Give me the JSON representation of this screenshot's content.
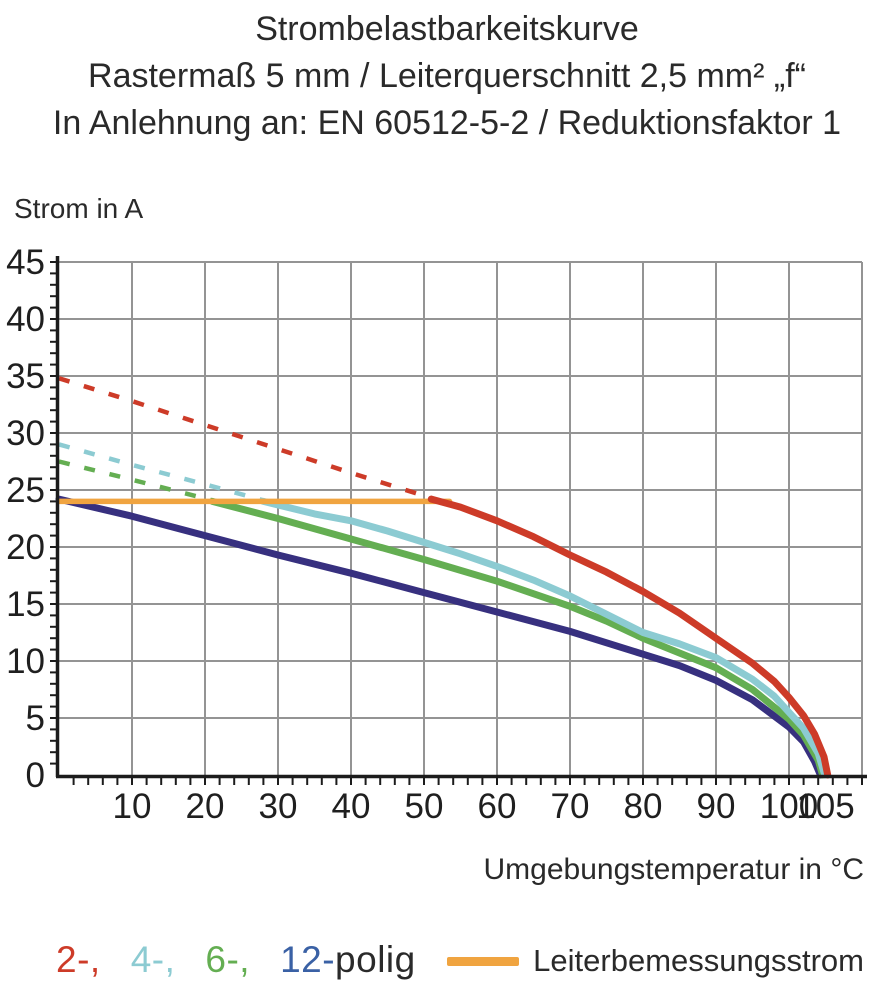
{
  "title": {
    "line1": "Strombelastbarkeitskurve",
    "line2": "Rastermaß 5 mm / Leiterquerschnitt 2,5 mm² „f“",
    "line3": "In Anlehnung an: EN 60512-5-2 / Reduktionsfaktor 1"
  },
  "axis_titles": {
    "y": "Strom in A",
    "x": "Umgebungstemperatur in °C"
  },
  "legend": {
    "poles": [
      {
        "label": "2-,",
        "color": "#cd3b28"
      },
      {
        "label": "4-,",
        "color": "#8ccbd2"
      },
      {
        "label": "6-,",
        "color": "#64ae52"
      },
      {
        "label": "12-polig",
        "color": "#3a61a5",
        "suffix": "polig",
        "number": "12-",
        "suffix_color": "#2a2a2a"
      }
    ],
    "rated": {
      "label": "Leiterbemessungsstrom",
      "swatch_color": "#f0a440"
    }
  },
  "colors": {
    "grid": "#949494",
    "axis": "#1c1c1c",
    "tick_text": "#1f1f1f",
    "red": "#cd3b28",
    "cyan": "#8ccbd2",
    "green": "#64ae52",
    "navy": "#37307f",
    "orange": "#f0a440"
  },
  "chart_data": {
    "type": "line",
    "title": "Strombelastbarkeitskurve",
    "subtitle": "Rastermaß 5 mm / Leiterquerschnitt 2,5 mm² „f“ / In Anlehnung an: EN 60512-5-2 / Reduktionsfaktor 1",
    "xlabel": "Umgebungstemperatur in °C",
    "ylabel": "Strom in A",
    "xlim": [
      0,
      110
    ],
    "ylim": [
      0,
      45
    ],
    "grid": true,
    "legend_position": "bottom",
    "x_grid_step": 10,
    "y_grid_step": 5,
    "x_minor_tick_step": 2,
    "y_minor_tick_step": 1,
    "x_tick_labels": [
      10,
      20,
      30,
      40,
      50,
      60,
      70,
      80,
      90,
      100,
      105
    ],
    "y_tick_labels": [
      0,
      5,
      10,
      15,
      20,
      25,
      30,
      35,
      40,
      45
    ],
    "series": [
      {
        "name": "2-polig",
        "color": "#cd3b28",
        "dashed_points": [
          [
            0,
            34.8
          ],
          [
            10,
            32.8
          ],
          [
            20,
            30.7
          ],
          [
            30,
            28.6
          ],
          [
            40,
            26.5
          ],
          [
            51,
            24.3
          ]
        ],
        "solid_points": [
          [
            51,
            24.2
          ],
          [
            55,
            23.5
          ],
          [
            60,
            22.3
          ],
          [
            65,
            20.9
          ],
          [
            70,
            19.3
          ],
          [
            75,
            17.8
          ],
          [
            80,
            16.1
          ],
          [
            85,
            14.2
          ],
          [
            90,
            12.0
          ],
          [
            95,
            9.8
          ],
          [
            98,
            8.2
          ],
          [
            100,
            6.8
          ],
          [
            102,
            5.2
          ],
          [
            103.5,
            3.6
          ],
          [
            104.8,
            1.6
          ],
          [
            105.3,
            0
          ]
        ]
      },
      {
        "name": "4-polig",
        "color": "#8ccbd2",
        "dashed_points": [
          [
            0,
            29.0
          ],
          [
            10,
            27.2
          ],
          [
            20,
            25.5
          ],
          [
            28,
            24.1
          ]
        ],
        "solid_points": [
          [
            28,
            24.0
          ],
          [
            35,
            22.9
          ],
          [
            40,
            22.3
          ],
          [
            45,
            21.4
          ],
          [
            50,
            20.4
          ],
          [
            55,
            19.4
          ],
          [
            60,
            18.3
          ],
          [
            65,
            17.1
          ],
          [
            70,
            15.7
          ],
          [
            75,
            14.1
          ],
          [
            80,
            12.5
          ],
          [
            85,
            11.5
          ],
          [
            90,
            10.3
          ],
          [
            95,
            8.4
          ],
          [
            98,
            6.9
          ],
          [
            100,
            5.5
          ],
          [
            102,
            4.1
          ],
          [
            104,
            1.9
          ],
          [
            104.9,
            0
          ]
        ]
      },
      {
        "name": "6-polig",
        "color": "#64ae52",
        "dashed_points": [
          [
            0,
            27.5
          ],
          [
            10,
            25.9
          ],
          [
            21,
            24.1
          ]
        ],
        "solid_points": [
          [
            21,
            24.0
          ],
          [
            30,
            22.5
          ],
          [
            40,
            20.7
          ],
          [
            50,
            18.9
          ],
          [
            60,
            17.0
          ],
          [
            70,
            14.8
          ],
          [
            75,
            13.5
          ],
          [
            80,
            12.0
          ],
          [
            85,
            10.7
          ],
          [
            90,
            9.4
          ],
          [
            95,
            7.5
          ],
          [
            100,
            4.9
          ],
          [
            102,
            3.5
          ],
          [
            104,
            1.3
          ],
          [
            104.6,
            0
          ]
        ]
      },
      {
        "name": "12-polig",
        "color": "#37307f",
        "solid_points": [
          [
            0,
            24.2
          ],
          [
            10,
            22.7
          ],
          [
            20,
            21.0
          ],
          [
            30,
            19.3
          ],
          [
            40,
            17.7
          ],
          [
            50,
            16.0
          ],
          [
            60,
            14.3
          ],
          [
            70,
            12.6
          ],
          [
            80,
            10.6
          ],
          [
            85,
            9.6
          ],
          [
            90,
            8.3
          ],
          [
            95,
            6.6
          ],
          [
            100,
            4.2
          ],
          [
            102,
            2.9
          ],
          [
            103.5,
            1.2
          ],
          [
            104.3,
            0
          ]
        ]
      },
      {
        "name": "Leiterbemessungsstrom",
        "color": "#f0a440",
        "solid_points": [
          [
            0,
            24.0
          ],
          [
            53.5,
            24.0
          ]
        ]
      }
    ]
  }
}
